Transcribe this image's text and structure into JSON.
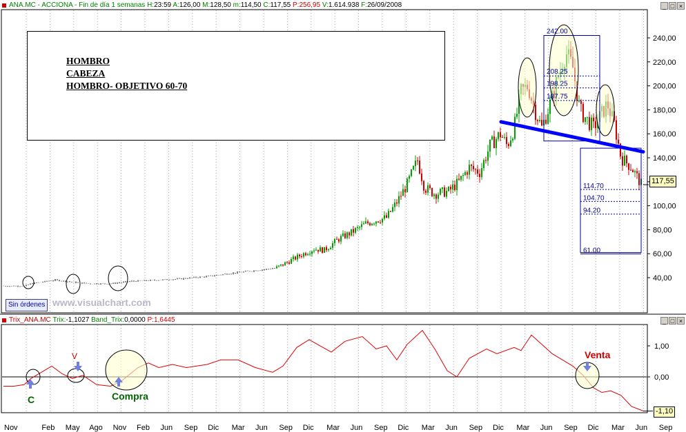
{
  "price_panel": {
    "header": {
      "symbol": "ANA.MC - ACCIONA - Fin de día 1 semanas",
      "h_label": "H:",
      "h_val": "23:59",
      "a_label": "A:",
      "a_val": "126,00",
      "m_label": "M:",
      "m_val": "128,50",
      "min_label": "m:",
      "min_val": "114,50",
      "c_label": "C:",
      "c_val": "117,55",
      "p_label": "P:",
      "p_val": "256,95",
      "v_label": "V:",
      "v_val": "1.614.938",
      "f_label": "F:",
      "f_val": "26/09/2008"
    },
    "annotation_lines": [
      "HOMBRO",
      "CABEZA",
      "HOMBRO- OBJETIVO  60-70"
    ],
    "orders_button": "Sin órdenes",
    "watermark": "www.visualchart.com",
    "last_price_label": "117,55",
    "fib_levels": [
      "242.00",
      "208.25",
      "198.25",
      "187.75",
      "114.70",
      "104.70",
      "94.20",
      "61.00"
    ]
  },
  "trix_panel": {
    "header": {
      "name": "Trix_ANA.MC",
      "trix_label": "Trix:",
      "trix_val": "-1,1027",
      "band_label": "Band_Trix:",
      "band_val": "0,0000",
      "p_label": "P:",
      "p_val": "1,6445"
    },
    "last_value_label": "-1,10",
    "annotations": {
      "c": "C",
      "v": "V",
      "compra": "Compra",
      "venta": "Venta"
    }
  },
  "colors": {
    "up": "#00a000",
    "down": "#d00000",
    "trix": "#e00000",
    "neckline": "#0000ff",
    "fib": "#0000a0"
  },
  "chart_data": [
    {
      "type": "candlestick",
      "title": "ANA.MC - ACCIONA - Fin de día 1 semanas",
      "y_ticks": [
        "40,00",
        "60,00",
        "80,00",
        "100,00",
        "120,00",
        "140,00",
        "160,00",
        "180,00",
        "200,00",
        "220,00",
        "240,00"
      ],
      "ylim": [
        20,
        250
      ],
      "x_ticks": [
        "Nov",
        "Feb",
        "May",
        "Ago",
        "Nov",
        "Feb",
        "Jun",
        "Sep",
        "Dic",
        "Mar",
        "Jun",
        "Sep",
        "Dic",
        "Mar",
        "Jun",
        "Sep",
        "Dic",
        "Mar",
        "Jun",
        "Sep",
        "Dic",
        "Mar",
        "Jun",
        "Sep",
        "Dic",
        "Mar",
        "Jun",
        "Sep"
      ],
      "price_path": [
        [
          0,
          33
        ],
        [
          35,
          33
        ],
        [
          45,
          35
        ],
        [
          80,
          38
        ],
        [
          110,
          36
        ],
        [
          130,
          35
        ],
        [
          160,
          35
        ],
        [
          190,
          37
        ],
        [
          230,
          38
        ],
        [
          260,
          39
        ],
        [
          300,
          41
        ],
        [
          340,
          44
        ],
        [
          370,
          46
        ],
        [
          400,
          48
        ],
        [
          420,
          54
        ],
        [
          440,
          60
        ],
        [
          455,
          64
        ],
        [
          470,
          63
        ],
        [
          490,
          72
        ],
        [
          510,
          78
        ],
        [
          530,
          85
        ],
        [
          545,
          88
        ],
        [
          560,
          90
        ],
        [
          575,
          103
        ],
        [
          590,
          118
        ],
        [
          605,
          138
        ],
        [
          615,
          115
        ],
        [
          630,
          110
        ],
        [
          650,
          112
        ],
        [
          665,
          120
        ],
        [
          680,
          132
        ],
        [
          695,
          128
        ],
        [
          710,
          150
        ],
        [
          725,
          160
        ],
        [
          735,
          150
        ],
        [
          745,
          165
        ],
        [
          755,
          195
        ],
        [
          765,
          200
        ],
        [
          775,
          180
        ],
        [
          785,
          165
        ],
        [
          800,
          190
        ],
        [
          810,
          210
        ],
        [
          820,
          228
        ],
        [
          830,
          215
        ],
        [
          840,
          180
        ],
        [
          850,
          172
        ],
        [
          860,
          165
        ],
        [
          870,
          175
        ],
        [
          880,
          185
        ],
        [
          890,
          168
        ],
        [
          900,
          140
        ],
        [
          915,
          132
        ],
        [
          930,
          117
        ]
      ],
      "neckline": [
        [
          726,
          170
        ],
        [
          932,
          145
        ]
      ],
      "fib_levels": [
        242,
        208.25,
        198.25,
        187.75,
        114.7,
        104.7,
        94.2,
        61
      ],
      "last": 117.55
    },
    {
      "type": "line",
      "title": "Trix_ANA.MC",
      "y_ticks": [
        "1,00",
        "0,00"
      ],
      "ylim": [
        -1.4,
        1.7
      ],
      "zero_line": 0,
      "series": [
        {
          "name": "Trix_ANA.MC",
          "points": [
            [
              5,
              -0.3
            ],
            [
              20,
              -0.3
            ],
            [
              35,
              -0.25
            ],
            [
              45,
              -0.05
            ],
            [
              60,
              0.15
            ],
            [
              75,
              0.35
            ],
            [
              90,
              0.1
            ],
            [
              105,
              -0.05
            ],
            [
              120,
              0.05
            ],
            [
              140,
              -0.25
            ],
            [
              160,
              -0.3
            ],
            [
              175,
              -0.15
            ],
            [
              200,
              0.3
            ],
            [
              215,
              0.45
            ],
            [
              230,
              0.3
            ],
            [
              250,
              0.4
            ],
            [
              270,
              0.3
            ],
            [
              300,
              0.4
            ],
            [
              320,
              0.55
            ],
            [
              345,
              0.55
            ],
            [
              370,
              0.3
            ],
            [
              395,
              0.15
            ],
            [
              410,
              0.35
            ],
            [
              430,
              0.95
            ],
            [
              448,
              1.2
            ],
            [
              460,
              1.05
            ],
            [
              480,
              0.8
            ],
            [
              500,
              1.15
            ],
            [
              525,
              1.3
            ],
            [
              545,
              0.9
            ],
            [
              560,
              1.0
            ],
            [
              575,
              0.55
            ],
            [
              590,
              1.05
            ],
            [
              612,
              1.5
            ],
            [
              630,
              0.9
            ],
            [
              648,
              0.2
            ],
            [
              662,
              0.0
            ],
            [
              680,
              0.6
            ],
            [
              705,
              0.9
            ],
            [
              720,
              0.75
            ],
            [
              745,
              0.95
            ],
            [
              755,
              0.85
            ],
            [
              770,
              1.35
            ],
            [
              785,
              1.05
            ],
            [
              800,
              0.75
            ],
            [
              815,
              0.55
            ],
            [
              830,
              0.35
            ],
            [
              845,
              0.05
            ],
            [
              860,
              -0.35
            ],
            [
              872,
              -0.5
            ],
            [
              885,
              -0.45
            ],
            [
              900,
              -0.6
            ],
            [
              915,
              -0.95
            ],
            [
              932,
              -1.1
            ]
          ]
        }
      ],
      "last": -1.1027
    }
  ]
}
